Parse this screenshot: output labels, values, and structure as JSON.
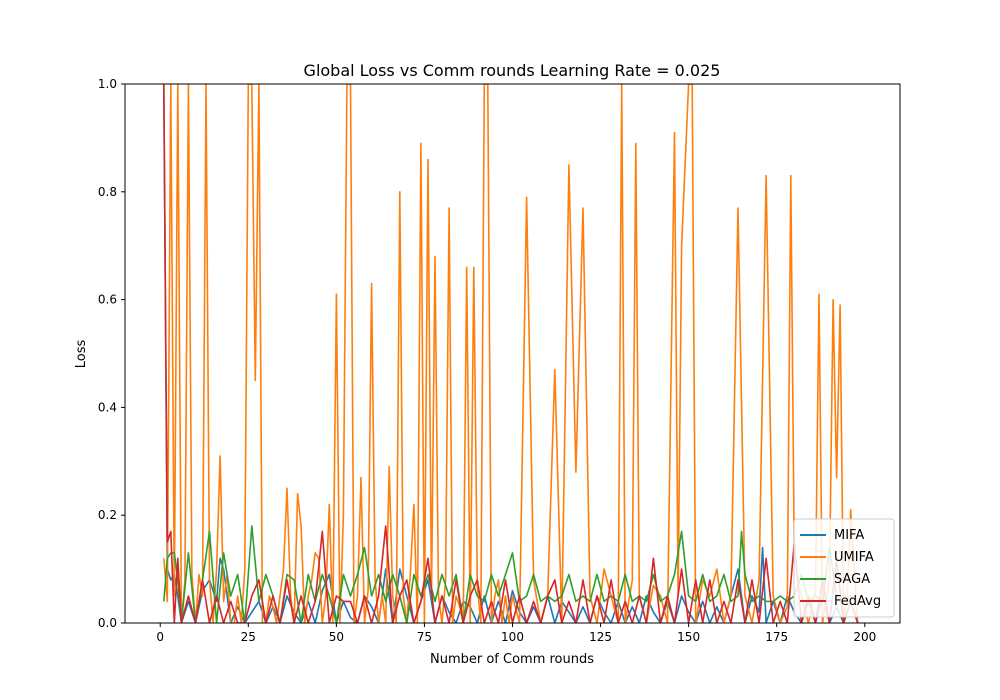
{
  "chart_data": {
    "type": "line",
    "title": "Global Loss vs Comm rounds Learning Rate = 0.025",
    "xlabel": "Number of Comm rounds",
    "ylabel": "Loss",
    "xlim": [
      -10,
      210
    ],
    "ylim": [
      0,
      1
    ],
    "xticks": [
      0,
      25,
      50,
      75,
      100,
      125,
      150,
      175,
      200
    ],
    "yticks": [
      0.0,
      0.2,
      0.4,
      0.6,
      0.8,
      1.0
    ],
    "xtick_labels": [
      "0",
      "25",
      "50",
      "75",
      "100",
      "125",
      "150",
      "175",
      "200"
    ],
    "ytick_labels": [
      "0.0",
      "0.2",
      "0.4",
      "0.6",
      "0.8",
      "1.0"
    ],
    "grid": false,
    "legend_position": "lower-right",
    "series": [
      {
        "name": "MIFA",
        "color": "#1f77b4",
        "x": [
          1,
          2,
          3,
          4,
          5,
          6,
          7,
          8,
          10,
          12,
          14,
          16,
          17,
          18,
          20,
          22,
          24,
          26,
          28,
          30,
          32,
          34,
          36,
          38,
          40,
          42,
          44,
          46,
          48,
          50,
          52,
          54,
          56,
          58,
          60,
          62,
          64,
          66,
          68,
          70,
          72,
          74,
          76,
          78,
          80,
          82,
          84,
          86,
          88,
          90,
          92,
          94,
          96,
          98,
          100,
          102,
          104,
          106,
          108,
          110,
          112,
          114,
          116,
          118,
          120,
          122,
          124,
          126,
          128,
          130,
          132,
          134,
          136,
          138,
          140,
          142,
          144,
          146,
          148,
          150,
          152,
          154,
          156,
          158,
          160,
          162,
          164,
          166,
          168,
          170,
          171,
          172,
          174,
          176,
          178,
          180,
          182,
          184,
          186,
          188,
          190,
          192,
          194,
          196,
          198
        ],
        "y": [
          1.0,
          0.1,
          0.08,
          0.09,
          0.05,
          0.0,
          0.02,
          0.04,
          0.0,
          0.06,
          0.08,
          0.04,
          0.12,
          0.1,
          0.0,
          0.03,
          0.0,
          0.02,
          0.04,
          0.0,
          0.03,
          0.0,
          0.05,
          0.02,
          0.0,
          0.04,
          0.0,
          0.06,
          0.09,
          0.0,
          0.04,
          0.01,
          0.0,
          0.05,
          0.03,
          0.0,
          0.1,
          0.0,
          0.1,
          0.05,
          0.0,
          0.04,
          0.08,
          0.0,
          0.05,
          0.02,
          0.0,
          0.04,
          0.03,
          0.0,
          0.05,
          0.0,
          0.04,
          0.0,
          0.06,
          0.02,
          0.0,
          0.03,
          0.0,
          0.05,
          0.0,
          0.04,
          0.02,
          0.0,
          0.03,
          0.0,
          0.05,
          0.02,
          0.0,
          0.04,
          0.0,
          0.03,
          0.0,
          0.05,
          0.02,
          0.0,
          0.04,
          0.0,
          0.05,
          0.02,
          0.0,
          0.04,
          0.0,
          0.03,
          0.0,
          0.05,
          0.1,
          0.0,
          0.05,
          0.02,
          0.14,
          0.0,
          0.04,
          0.0,
          0.05,
          0.02,
          0.0,
          0.04,
          0.0,
          0.05,
          0.0,
          0.03,
          0.0,
          0.04,
          0.0
        ]
      },
      {
        "name": "UMIFA",
        "color": "#ff7f0e",
        "x": [
          1,
          2,
          3,
          4,
          5,
          6,
          7,
          8,
          9,
          10,
          11,
          12,
          13,
          14,
          15,
          16,
          17,
          18,
          19,
          20,
          21,
          22,
          23,
          24,
          25,
          26,
          27,
          28,
          29,
          30,
          31,
          32,
          33,
          34,
          35,
          36,
          37,
          38,
          39,
          40,
          41,
          42,
          43,
          44,
          45,
          46,
          47,
          48,
          49,
          50,
          51,
          52,
          53,
          54,
          55,
          56,
          57,
          58,
          59,
          60,
          61,
          62,
          63,
          64,
          65,
          66,
          67,
          68,
          69,
          70,
          71,
          72,
          73,
          74,
          75,
          76,
          77,
          78,
          79,
          80,
          81,
          82,
          83,
          84,
          85,
          86,
          87,
          88,
          89,
          90,
          91,
          92,
          93,
          94,
          95,
          96,
          97,
          98,
          99,
          100,
          102,
          104,
          106,
          108,
          110,
          112,
          114,
          116,
          118,
          120,
          122,
          124,
          126,
          128,
          130,
          131,
          132,
          134,
          135,
          136,
          138,
          140,
          142,
          144,
          146,
          147,
          148,
          150,
          151,
          152,
          154,
          156,
          158,
          160,
          162,
          164,
          166,
          168,
          170,
          172,
          174,
          176,
          178,
          179,
          180,
          182,
          184,
          186,
          187,
          188,
          190,
          191,
          192,
          193,
          194,
          195,
          196,
          198
        ],
        "y": [
          0.12,
          0.04,
          1.0,
          0.05,
          1.0,
          0.0,
          0.08,
          1.0,
          0.09,
          0.0,
          0.09,
          0.05,
          1.0,
          0.08,
          0.0,
          0.1,
          0.31,
          0.04,
          0.09,
          0.0,
          0.0,
          0.05,
          0.0,
          0.1,
          1.0,
          1.0,
          0.45,
          1.0,
          0.0,
          0.0,
          0.05,
          0.03,
          0.0,
          0.05,
          0.1,
          0.25,
          0.05,
          0.0,
          0.24,
          0.18,
          0.0,
          0.05,
          0.08,
          0.13,
          0.12,
          0.0,
          0.05,
          0.22,
          0.0,
          0.61,
          0.0,
          0.2,
          1.0,
          1.0,
          0.0,
          0.05,
          0.27,
          0.0,
          0.06,
          0.63,
          0.08,
          0.0,
          0.05,
          0.0,
          0.29,
          0.05,
          0.0,
          0.8,
          0.05,
          0.0,
          0.09,
          0.22,
          0.0,
          0.89,
          0.0,
          0.86,
          0.05,
          0.68,
          0.05,
          0.0,
          0.08,
          0.77,
          0.0,
          0.05,
          0.03,
          0.0,
          0.66,
          0.0,
          0.66,
          0.07,
          0.0,
          1.0,
          1.0,
          0.0,
          0.05,
          0.08,
          0.0,
          0.05,
          0.0,
          0.05,
          0.0,
          0.79,
          0.08,
          0.0,
          0.05,
          0.47,
          0.0,
          0.85,
          0.28,
          0.77,
          0.05,
          0.0,
          0.1,
          0.05,
          0.0,
          1.0,
          0.0,
          0.08,
          0.89,
          0.05,
          0.0,
          0.07,
          0.05,
          0.0,
          0.91,
          0.05,
          0.7,
          1.0,
          1.0,
          0.0,
          0.08,
          0.05,
          0.1,
          0.0,
          0.05,
          0.77,
          0.05,
          0.0,
          0.08,
          0.83,
          0.05,
          0.0,
          0.03,
          0.83,
          0.12,
          0.05,
          0.0,
          0.06,
          0.61,
          0.0,
          0.08,
          0.6,
          0.27,
          0.59,
          0.0,
          0.05,
          0.21,
          0.0
        ]
      },
      {
        "name": "SAGA",
        "color": "#2ca02c",
        "x": [
          1,
          2,
          3,
          4,
          5,
          6,
          8,
          10,
          12,
          14,
          16,
          18,
          20,
          22,
          24,
          26,
          28,
          30,
          32,
          34,
          36,
          38,
          40,
          42,
          44,
          46,
          48,
          50,
          52,
          54,
          56,
          58,
          60,
          62,
          64,
          66,
          68,
          70,
          72,
          74,
          76,
          78,
          80,
          82,
          84,
          86,
          88,
          90,
          92,
          94,
          96,
          98,
          100,
          102,
          104,
          106,
          108,
          110,
          112,
          114,
          116,
          118,
          120,
          122,
          124,
          126,
          128,
          130,
          132,
          134,
          136,
          138,
          140,
          142,
          144,
          146,
          148,
          150,
          152,
          154,
          156,
          158,
          160,
          162,
          164,
          165,
          166,
          168,
          170,
          172,
          174,
          176,
          178,
          180,
          182,
          184,
          186,
          188,
          190,
          192,
          194,
          196,
          198
        ],
        "y": [
          0.04,
          0.12,
          0.13,
          0.13,
          0.08,
          0.0,
          0.13,
          0.0,
          0.08,
          0.17,
          0.0,
          0.13,
          0.05,
          0.09,
          0.0,
          0.18,
          0.04,
          0.09,
          0.05,
          0.0,
          0.09,
          0.08,
          0.0,
          0.09,
          0.04,
          0.09,
          0.05,
          0.0,
          0.09,
          0.05,
          0.09,
          0.14,
          0.05,
          0.09,
          0.04,
          0.09,
          0.05,
          0.0,
          0.09,
          0.05,
          0.09,
          0.04,
          0.09,
          0.05,
          0.09,
          0.0,
          0.09,
          0.05,
          0.04,
          0.09,
          0.05,
          0.09,
          0.13,
          0.04,
          0.05,
          0.09,
          0.04,
          0.05,
          0.04,
          0.05,
          0.09,
          0.04,
          0.05,
          0.04,
          0.09,
          0.04,
          0.05,
          0.04,
          0.09,
          0.04,
          0.05,
          0.04,
          0.09,
          0.04,
          0.05,
          0.09,
          0.17,
          0.05,
          0.04,
          0.09,
          0.04,
          0.05,
          0.09,
          0.04,
          0.05,
          0.17,
          0.09,
          0.04,
          0.05,
          0.04,
          0.04,
          0.05,
          0.04,
          0.05,
          0.09,
          0.04,
          0.05,
          0.04,
          0.14,
          0.05,
          0.04,
          0.05,
          0.04
        ]
      },
      {
        "name": "FedAvg",
        "color": "#d62728",
        "x": [
          1,
          2,
          3,
          4,
          5,
          6,
          8,
          10,
          12,
          14,
          16,
          18,
          20,
          22,
          24,
          26,
          28,
          30,
          32,
          34,
          36,
          38,
          40,
          42,
          44,
          46,
          48,
          50,
          52,
          54,
          56,
          58,
          60,
          62,
          64,
          66,
          68,
          70,
          72,
          74,
          76,
          78,
          80,
          82,
          84,
          86,
          88,
          90,
          92,
          94,
          96,
          98,
          100,
          102,
          104,
          106,
          108,
          110,
          112,
          114,
          116,
          118,
          120,
          122,
          124,
          126,
          128,
          130,
          132,
          134,
          136,
          138,
          140,
          142,
          144,
          146,
          148,
          150,
          152,
          154,
          156,
          158,
          160,
          162,
          164,
          166,
          168,
          170,
          172,
          174,
          176,
          178,
          180,
          182,
          184,
          186,
          188,
          190,
          192,
          194,
          196,
          198
        ],
        "y": [
          1.0,
          0.15,
          0.17,
          0.0,
          0.12,
          0.0,
          0.05,
          0.0,
          0.08,
          0.0,
          0.05,
          0.0,
          0.04,
          0.0,
          0.0,
          0.05,
          0.08,
          0.0,
          0.05,
          0.0,
          0.08,
          0.0,
          0.05,
          0.0,
          0.04,
          0.17,
          0.0,
          0.05,
          0.04,
          0.04,
          0.0,
          0.05,
          0.0,
          0.05,
          0.18,
          0.0,
          0.05,
          0.08,
          0.0,
          0.04,
          0.12,
          0.0,
          0.05,
          0.0,
          0.08,
          0.0,
          0.05,
          0.08,
          0.0,
          0.04,
          0.0,
          0.08,
          0.0,
          0.05,
          0.0,
          0.04,
          0.0,
          0.05,
          0.08,
          0.0,
          0.04,
          0.0,
          0.08,
          0.0,
          0.05,
          0.0,
          0.08,
          0.0,
          0.04,
          0.0,
          0.05,
          0.0,
          0.12,
          0.0,
          0.05,
          0.0,
          0.1,
          0.0,
          0.08,
          0.0,
          0.08,
          0.0,
          0.04,
          0.0,
          0.08,
          0.0,
          0.08,
          0.0,
          0.12,
          0.0,
          0.04,
          0.0,
          0.15,
          0.0,
          0.05,
          0.0,
          0.08,
          0.0,
          0.12,
          0.0,
          0.04,
          0.0
        ]
      }
    ]
  }
}
